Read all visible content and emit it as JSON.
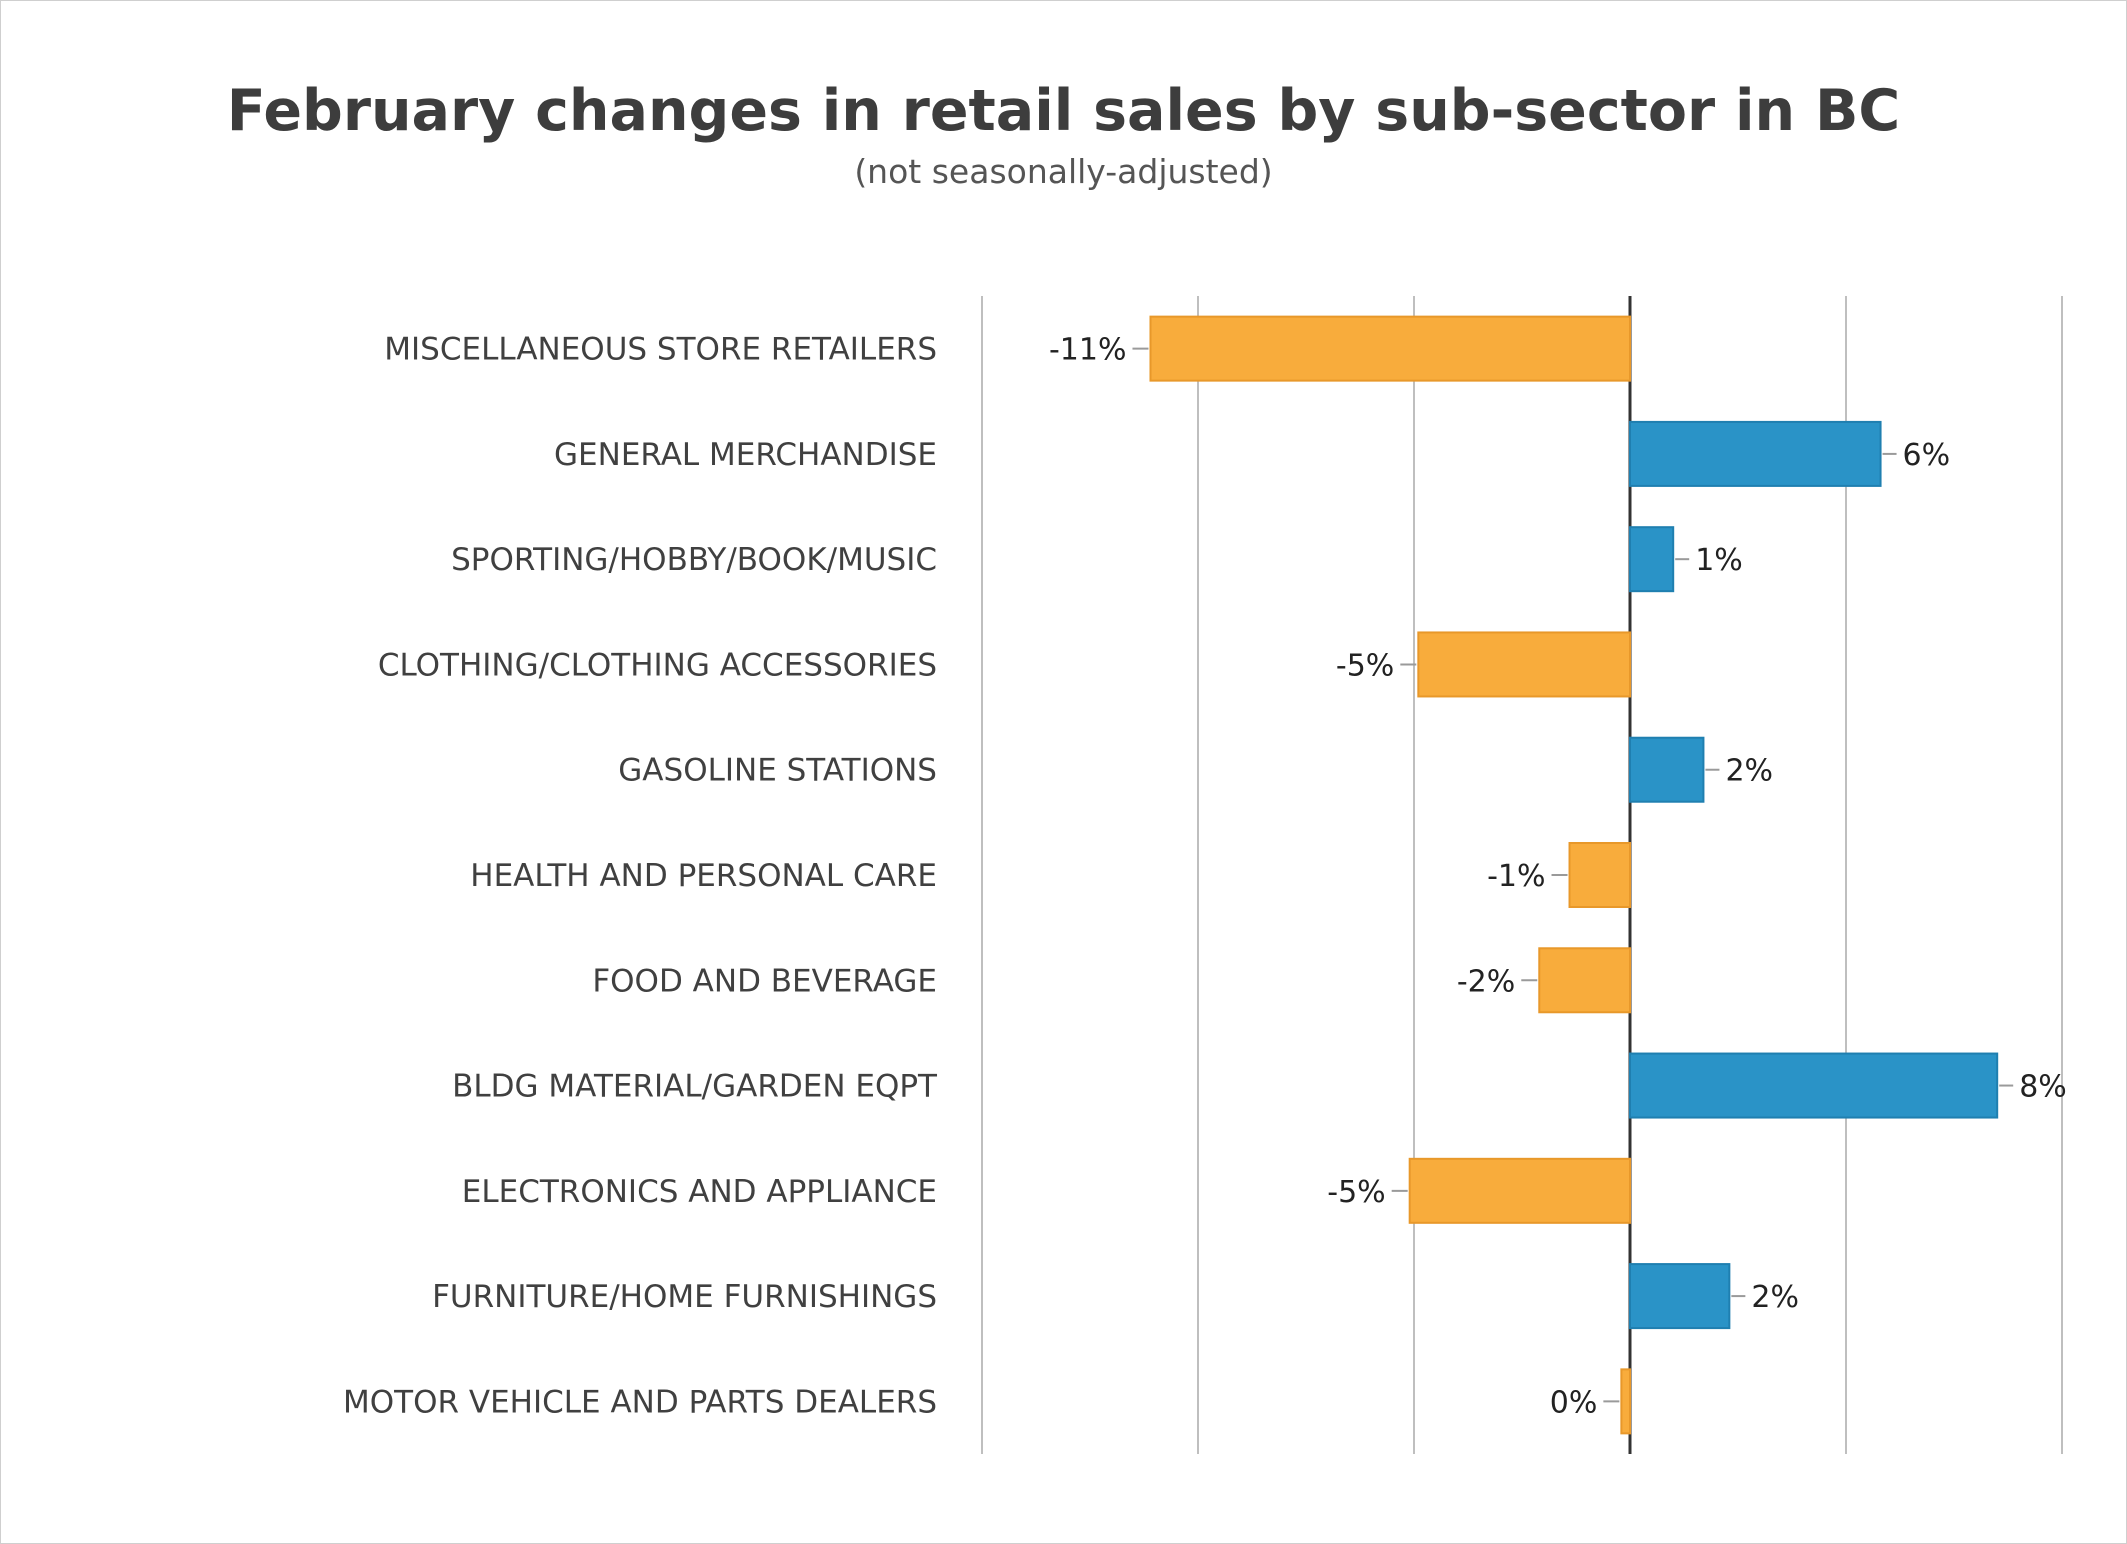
{
  "chart_data": {
    "type": "bar",
    "orientation": "horizontal",
    "title": "February changes in retail sales by sub-sector in BC",
    "subtitle": "(not seasonally-adjusted)",
    "xlabel": "",
    "ylabel": "",
    "xlim": [
      -15,
      10
    ],
    "grid": true,
    "categories": [
      "MISCELLANEOUS STORE RETAILERS",
      "GENERAL MERCHANDISE",
      "SPORTING/HOBBY/BOOK/MUSIC",
      "CLOTHING/CLOTHING ACCESSORIES",
      "GASOLINE STATIONS",
      "HEALTH AND PERSONAL CARE",
      "FOOD AND BEVERAGE",
      "BLDG MATERIAL/GARDEN EQPT",
      "ELECTRONICS AND APPLIANCE",
      "FURNITURE/HOME FURNISHINGS",
      "MOTOR VEHICLE AND PARTS DEALERS"
    ],
    "values": [
      -11.1,
      5.8,
      1.0,
      -4.9,
      1.7,
      -1.4,
      -2.1,
      8.5,
      -5.1,
      2.3,
      -0.2
    ],
    "value_labels": [
      "-11%",
      "6%",
      "1%",
      "-5%",
      "2%",
      "-1%",
      "-2%",
      "8%",
      "-5%",
      "2%",
      "0%"
    ],
    "colors": {
      "positive": "#2a93c7",
      "negative": "#f8ac3c",
      "positive_edge": "#1f7fb0",
      "negative_edge": "#e8982a",
      "grid": "#bfbfbf",
      "axis": "#333333"
    }
  }
}
